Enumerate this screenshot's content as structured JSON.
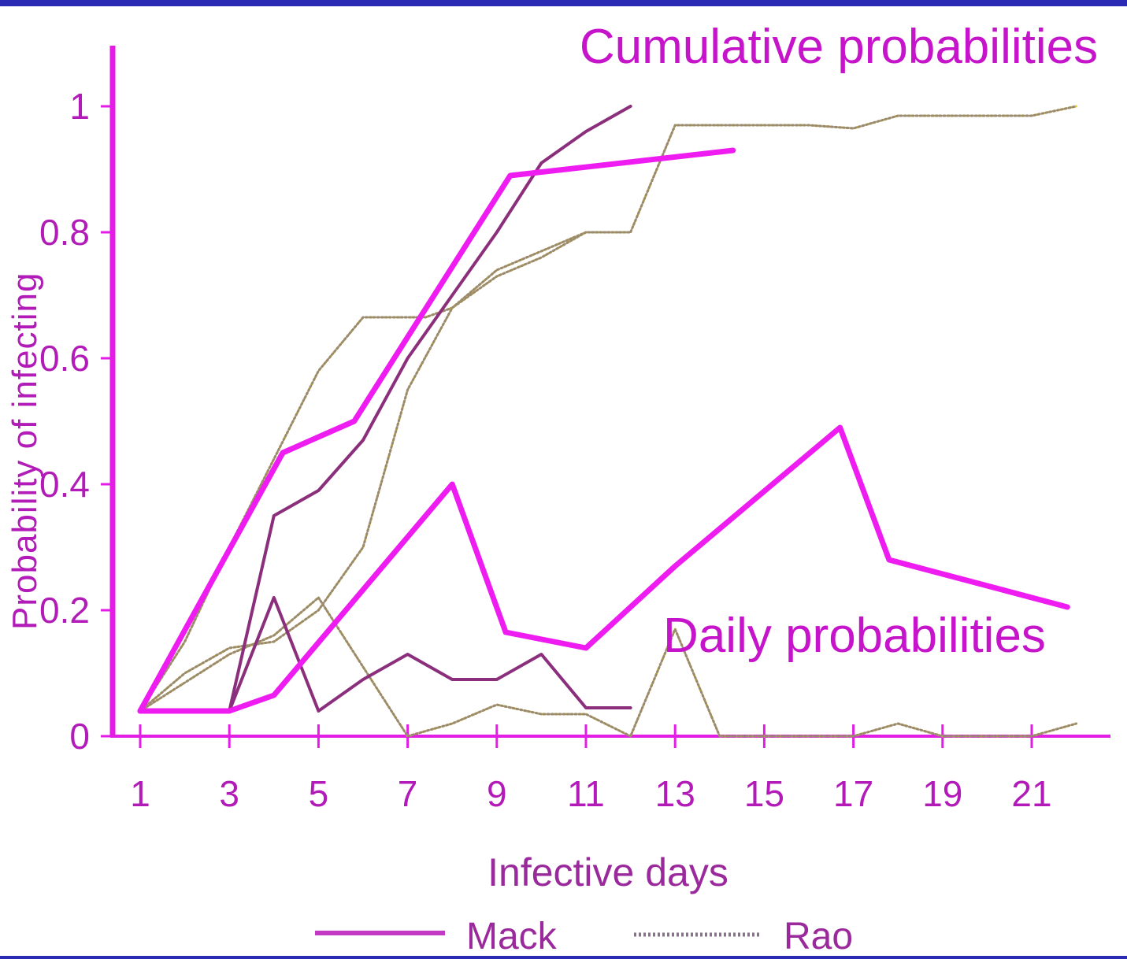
{
  "chart_data": {
    "type": "line",
    "xlabel": "Infective days",
    "ylabel": "Probability of infecting",
    "xlim": [
      0,
      23
    ],
    "ylim": [
      0,
      1.1
    ],
    "xticks": [
      1,
      3,
      5,
      7,
      9,
      11,
      13,
      15,
      17,
      19,
      21
    ],
    "yticks": [
      0,
      0.2,
      0.4,
      0.6,
      0.8,
      1
    ],
    "ytick_labels": [
      "0",
      "0.2",
      "0.4",
      "0.6",
      "0.8",
      "1"
    ],
    "annotations": [
      "Cumulative probabilities",
      "Daily probabilities"
    ],
    "legend": [
      "Mack",
      "Rao"
    ],
    "legend_position": "bottom",
    "grid": false,
    "colors": {
      "axis": "#e31ce6",
      "accent": "#ee1cf0",
      "mack_thin": "#8b2f7c",
      "rao_dotted": "#9a8a6e",
      "rao_yellow": "#e9d040",
      "text": "#b21bb8"
    },
    "series": [
      {
        "name": "",
        "style": "bold-solid",
        "role": "cumulative",
        "points": [
          [
            1,
            0.04
          ],
          [
            4.2,
            0.45
          ],
          [
            5.8,
            0.5
          ],
          [
            9.3,
            0.89
          ],
          [
            14.3,
            0.93
          ]
        ]
      },
      {
        "name": "",
        "style": "bold-solid",
        "role": "daily",
        "points": [
          [
            1,
            0.04
          ],
          [
            3,
            0.04
          ],
          [
            4,
            0.065
          ],
          [
            8,
            0.4
          ],
          [
            9.2,
            0.165
          ],
          [
            11,
            0.14
          ],
          [
            13,
            0.27
          ],
          [
            16.7,
            0.49
          ],
          [
            17.8,
            0.28
          ],
          [
            21.8,
            0.205
          ]
        ]
      },
      {
        "name": "",
        "style": "thin-solid",
        "role": "cumulative",
        "points": [
          [
            1,
            0.04
          ],
          [
            3,
            0.04
          ],
          [
            4,
            0.35
          ],
          [
            5,
            0.39
          ],
          [
            6,
            0.47
          ],
          [
            7,
            0.6
          ],
          [
            8,
            0.7
          ],
          [
            9,
            0.8
          ],
          [
            10,
            0.91
          ],
          [
            11,
            0.96
          ],
          [
            12,
            1.0
          ]
        ]
      },
      {
        "name": "",
        "style": "thin-solid",
        "role": "daily",
        "points": [
          [
            1,
            0.04
          ],
          [
            3,
            0.04
          ],
          [
            4,
            0.22
          ],
          [
            5,
            0.04
          ],
          [
            6,
            0.09
          ],
          [
            7,
            0.13
          ],
          [
            8,
            0.09
          ],
          [
            9,
            0.09
          ],
          [
            10,
            0.13
          ],
          [
            11,
            0.045
          ],
          [
            12,
            0.045
          ]
        ]
      },
      {
        "name": "",
        "style": "dotted",
        "role": "cumulative",
        "points": [
          [
            1,
            0.04
          ],
          [
            2,
            0.15
          ],
          [
            3,
            0.3
          ],
          [
            4,
            0.44
          ],
          [
            5,
            0.58
          ],
          [
            6,
            0.665
          ],
          [
            7.4,
            0.665
          ],
          [
            8,
            0.68
          ],
          [
            9,
            0.73
          ],
          [
            10,
            0.76
          ],
          [
            11,
            0.8
          ],
          [
            12,
            0.8
          ],
          [
            13,
            0.97
          ],
          [
            16,
            0.97
          ],
          [
            17,
            0.965
          ],
          [
            18,
            0.985
          ],
          [
            21,
            0.985
          ],
          [
            22,
            1.0
          ]
        ]
      },
      {
        "name": "",
        "style": "dotted",
        "role": "cumulative",
        "points": [
          [
            1,
            0.04
          ],
          [
            2,
            0.1
          ],
          [
            3,
            0.14
          ],
          [
            4,
            0.15
          ],
          [
            5,
            0.2
          ],
          [
            6,
            0.3
          ],
          [
            7,
            0.55
          ],
          [
            8,
            0.68
          ],
          [
            9,
            0.74
          ],
          [
            10,
            0.77
          ],
          [
            11,
            0.8
          ],
          [
            12,
            0.8
          ]
        ]
      },
      {
        "name": "",
        "style": "dotted",
        "role": "daily",
        "points": [
          [
            1,
            0.04
          ],
          [
            3,
            0.13
          ],
          [
            4,
            0.16
          ],
          [
            5,
            0.22
          ],
          [
            7,
            0.0
          ],
          [
            8,
            0.02
          ],
          [
            9,
            0.05
          ],
          [
            10,
            0.035
          ],
          [
            11,
            0.035
          ],
          [
            12,
            0.0
          ],
          [
            13,
            0.17
          ],
          [
            14,
            0.0
          ],
          [
            17,
            0.0
          ],
          [
            18,
            0.02
          ],
          [
            19,
            0.0
          ],
          [
            21,
            0.0
          ],
          [
            22,
            0.02
          ]
        ]
      }
    ]
  }
}
